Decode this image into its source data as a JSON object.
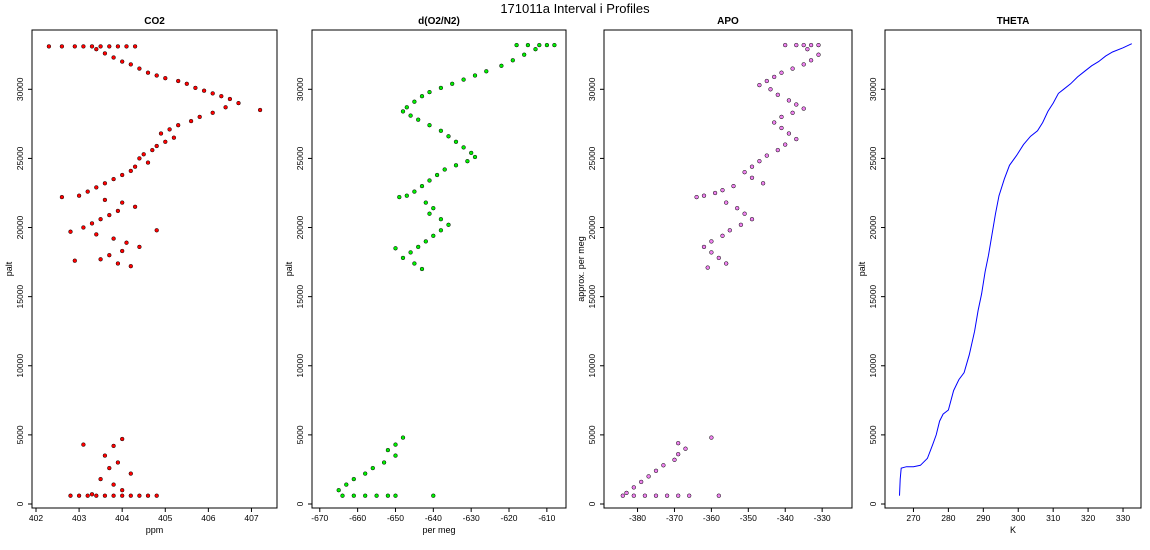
{
  "figure_title": "171011a   Interval i Profiles",
  "chart_data": [
    {
      "type": "scatter",
      "title": "CO2",
      "xlabel": "ppm",
      "ylabel": "palt",
      "xlim": [
        402.0,
        407.5
      ],
      "ylim": [
        0,
        34000
      ],
      "xticks": [
        402,
        403,
        404,
        405,
        406,
        407
      ],
      "yticks": [
        0,
        5000,
        10000,
        15000,
        20000,
        25000,
        30000
      ],
      "color": "#ff0000",
      "style": "points",
      "points": [
        [
          402.3,
          33100
        ],
        [
          402.6,
          33100
        ],
        [
          402.9,
          33100
        ],
        [
          403.1,
          33100
        ],
        [
          403.3,
          33100
        ],
        [
          403.5,
          33100
        ],
        [
          403.7,
          33100
        ],
        [
          403.9,
          33100
        ],
        [
          404.1,
          33100
        ],
        [
          404.3,
          33100
        ],
        [
          403.4,
          32900
        ],
        [
          403.6,
          32600
        ],
        [
          403.8,
          32300
        ],
        [
          404.0,
          32000
        ],
        [
          404.2,
          31800
        ],
        [
          404.4,
          31500
        ],
        [
          404.6,
          31200
        ],
        [
          404.8,
          31000
        ],
        [
          405.0,
          30800
        ],
        [
          405.3,
          30600
        ],
        [
          405.5,
          30400
        ],
        [
          405.7,
          30100
        ],
        [
          405.9,
          29900
        ],
        [
          406.1,
          29700
        ],
        [
          406.3,
          29500
        ],
        [
          406.5,
          29300
        ],
        [
          406.7,
          29000
        ],
        [
          407.2,
          28500
        ],
        [
          406.4,
          28700
        ],
        [
          406.1,
          28300
        ],
        [
          405.8,
          28000
        ],
        [
          405.6,
          27700
        ],
        [
          405.3,
          27400
        ],
        [
          405.1,
          27100
        ],
        [
          404.9,
          26800
        ],
        [
          405.2,
          26500
        ],
        [
          405.0,
          26200
        ],
        [
          404.8,
          25900
        ],
        [
          404.7,
          25600
        ],
        [
          404.5,
          25300
        ],
        [
          404.4,
          25000
        ],
        [
          404.6,
          24700
        ],
        [
          404.3,
          24400
        ],
        [
          404.2,
          24100
        ],
        [
          404.0,
          23800
        ],
        [
          403.8,
          23500
        ],
        [
          403.6,
          23200
        ],
        [
          403.4,
          22900
        ],
        [
          403.2,
          22600
        ],
        [
          403.0,
          22300
        ],
        [
          402.6,
          22200
        ],
        [
          403.6,
          22000
        ],
        [
          404.0,
          21800
        ],
        [
          404.3,
          21500
        ],
        [
          403.9,
          21200
        ],
        [
          403.7,
          20900
        ],
        [
          403.5,
          20600
        ],
        [
          403.3,
          20300
        ],
        [
          403.1,
          20000
        ],
        [
          402.8,
          19700
        ],
        [
          403.4,
          19500
        ],
        [
          403.8,
          19200
        ],
        [
          404.1,
          18900
        ],
        [
          404.4,
          18600
        ],
        [
          404.0,
          18300
        ],
        [
          403.7,
          18000
        ],
        [
          403.5,
          17700
        ],
        [
          403.9,
          17400
        ],
        [
          404.2,
          17200
        ],
        [
          404.8,
          19800
        ],
        [
          402.9,
          17600
        ],
        [
          403.1,
          4300
        ],
        [
          404.0,
          4700
        ],
        [
          403.8,
          4200
        ],
        [
          403.6,
          3500
        ],
        [
          403.9,
          3000
        ],
        [
          403.7,
          2600
        ],
        [
          404.2,
          2200
        ],
        [
          403.5,
          1800
        ],
        [
          403.8,
          1400
        ],
        [
          404.0,
          1000
        ],
        [
          403.3,
          700
        ],
        [
          402.8,
          600
        ],
        [
          403.0,
          600
        ],
        [
          403.2,
          600
        ],
        [
          403.4,
          600
        ],
        [
          403.6,
          600
        ],
        [
          403.8,
          600
        ],
        [
          404.0,
          600
        ],
        [
          404.2,
          600
        ],
        [
          404.4,
          600
        ],
        [
          404.6,
          600
        ],
        [
          404.8,
          600
        ]
      ]
    },
    {
      "type": "scatter",
      "title": "d(O2/N2)",
      "xlabel": "per meg",
      "ylabel": "palt",
      "xlim": [
        -671,
        -606
      ],
      "ylim": [
        0,
        34000
      ],
      "xticks": [
        -670,
        -660,
        -650,
        -640,
        -630,
        -620,
        -610
      ],
      "yticks": [
        0,
        5000,
        10000,
        15000,
        20000,
        25000,
        30000
      ],
      "color": "#00ee00",
      "style": "points",
      "points": [
        [
          -618,
          33200
        ],
        [
          -615,
          33200
        ],
        [
          -612,
          33200
        ],
        [
          -610,
          33200
        ],
        [
          -608,
          33200
        ],
        [
          -613,
          32900
        ],
        [
          -616,
          32500
        ],
        [
          -619,
          32100
        ],
        [
          -622,
          31700
        ],
        [
          -626,
          31300
        ],
        [
          -629,
          31000
        ],
        [
          -632,
          30700
        ],
        [
          -635,
          30400
        ],
        [
          -638,
          30100
        ],
        [
          -641,
          29800
        ],
        [
          -643,
          29500
        ],
        [
          -645,
          29100
        ],
        [
          -647,
          28700
        ],
        [
          -648,
          28400
        ],
        [
          -646,
          28100
        ],
        [
          -644,
          27800
        ],
        [
          -641,
          27400
        ],
        [
          -638,
          27000
        ],
        [
          -636,
          26600
        ],
        [
          -634,
          26200
        ],
        [
          -632,
          25800
        ],
        [
          -630,
          25400
        ],
        [
          -629,
          25100
        ],
        [
          -631,
          24800
        ],
        [
          -634,
          24500
        ],
        [
          -637,
          24200
        ],
        [
          -639,
          23800
        ],
        [
          -641,
          23400
        ],
        [
          -643,
          23000
        ],
        [
          -645,
          22600
        ],
        [
          -647,
          22300
        ],
        [
          -649,
          22200
        ],
        [
          -642,
          21800
        ],
        [
          -640,
          21400
        ],
        [
          -641,
          21000
        ],
        [
          -638,
          20600
        ],
        [
          -636,
          20200
        ],
        [
          -638,
          19800
        ],
        [
          -640,
          19400
        ],
        [
          -642,
          19000
        ],
        [
          -644,
          18600
        ],
        [
          -646,
          18200
        ],
        [
          -648,
          17800
        ],
        [
          -645,
          17400
        ],
        [
          -643,
          17000
        ],
        [
          -650,
          18500
        ],
        [
          -648,
          4800
        ],
        [
          -650,
          4300
        ],
        [
          -652,
          3900
        ],
        [
          -650,
          3500
        ],
        [
          -653,
          3000
        ],
        [
          -656,
          2600
        ],
        [
          -658,
          2200
        ],
        [
          -661,
          1800
        ],
        [
          -663,
          1400
        ],
        [
          -665,
          1000
        ],
        [
          -664,
          600
        ],
        [
          -661,
          600
        ],
        [
          -658,
          600
        ],
        [
          -655,
          600
        ],
        [
          -652,
          600
        ],
        [
          -650,
          600
        ],
        [
          -640,
          600
        ]
      ]
    },
    {
      "type": "scatter",
      "title": "APO",
      "xlabel": "",
      "ylabel": "approx. per meg",
      "xlim": [
        -388,
        -323
      ],
      "ylim": [
        0,
        34000
      ],
      "xticks": [
        -380,
        -370,
        -360,
        -350,
        -340,
        -330
      ],
      "yticks": [
        0,
        5000,
        10000,
        15000,
        20000,
        25000,
        30000
      ],
      "color": "#ee82ee",
      "style": "points",
      "points": [
        [
          -340,
          33200
        ],
        [
          -337,
          33200
        ],
        [
          -335,
          33200
        ],
        [
          -333,
          33200
        ],
        [
          -331,
          33200
        ],
        [
          -334,
          32900
        ],
        [
          -331,
          32500
        ],
        [
          -333,
          32100
        ],
        [
          -335,
          31800
        ],
        [
          -338,
          31500
        ],
        [
          -341,
          31200
        ],
        [
          -343,
          30900
        ],
        [
          -345,
          30600
        ],
        [
          -347,
          30300
        ],
        [
          -344,
          30000
        ],
        [
          -342,
          29600
        ],
        [
          -339,
          29200
        ],
        [
          -337,
          28900
        ],
        [
          -335,
          28600
        ],
        [
          -338,
          28300
        ],
        [
          -341,
          28000
        ],
        [
          -343,
          27600
        ],
        [
          -341,
          27200
        ],
        [
          -339,
          26800
        ],
        [
          -337,
          26400
        ],
        [
          -340,
          26000
        ],
        [
          -342,
          25600
        ],
        [
          -345,
          25200
        ],
        [
          -347,
          24800
        ],
        [
          -349,
          24400
        ],
        [
          -351,
          24000
        ],
        [
          -349,
          23600
        ],
        [
          -346,
          23200
        ],
        [
          -354,
          23000
        ],
        [
          -357,
          22700
        ],
        [
          -359,
          22500
        ],
        [
          -362,
          22300
        ],
        [
          -364,
          22200
        ],
        [
          -356,
          21800
        ],
        [
          -353,
          21400
        ],
        [
          -351,
          21000
        ],
        [
          -349,
          20600
        ],
        [
          -352,
          20200
        ],
        [
          -355,
          19800
        ],
        [
          -357,
          19400
        ],
        [
          -360,
          19000
        ],
        [
          -362,
          18600
        ],
        [
          -360,
          18200
        ],
        [
          -358,
          17800
        ],
        [
          -356,
          17400
        ],
        [
          -361,
          17100
        ],
        [
          -369,
          4400
        ],
        [
          -367,
          4000
        ],
        [
          -369,
          3600
        ],
        [
          -370,
          3200
        ],
        [
          -373,
          2800
        ],
        [
          -375,
          2400
        ],
        [
          -377,
          2000
        ],
        [
          -379,
          1600
        ],
        [
          -381,
          1200
        ],
        [
          -383,
          800
        ],
        [
          -384,
          600
        ],
        [
          -381,
          600
        ],
        [
          -378,
          600
        ],
        [
          -375,
          600
        ],
        [
          -372,
          600
        ],
        [
          -369,
          600
        ],
        [
          -366,
          600
        ],
        [
          -358,
          600
        ],
        [
          -360,
          4800
        ]
      ]
    },
    {
      "type": "line",
      "title": "THETA",
      "xlabel": "K",
      "ylabel": "palt",
      "xlim": [
        263,
        334
      ],
      "ylim": [
        0,
        34000
      ],
      "xticks": [
        270,
        280,
        290,
        300,
        310,
        320,
        330
      ],
      "yticks": [
        0,
        5000,
        10000,
        15000,
        20000,
        25000,
        30000
      ],
      "color": "#0000ff",
      "style": "line",
      "points": [
        [
          266.0,
          600
        ],
        [
          266.2,
          1800
        ],
        [
          266.5,
          2600
        ],
        [
          268,
          2700
        ],
        [
          270,
          2700
        ],
        [
          272,
          2800
        ],
        [
          274,
          3300
        ],
        [
          275.5,
          4300
        ],
        [
          276.5,
          5000
        ],
        [
          277.5,
          6000
        ],
        [
          278.5,
          6500
        ],
        [
          280,
          6800
        ],
        [
          281.5,
          8200
        ],
        [
          283,
          9000
        ],
        [
          284.5,
          9500
        ],
        [
          286,
          10800
        ],
        [
          287.5,
          12500
        ],
        [
          288.5,
          14000
        ],
        [
          289.5,
          15200
        ],
        [
          290.5,
          16800
        ],
        [
          291.5,
          18000
        ],
        [
          292.5,
          19500
        ],
        [
          293.5,
          21000
        ],
        [
          294.5,
          22300
        ],
        [
          296,
          23500
        ],
        [
          297.5,
          24500
        ],
        [
          299.5,
          25200
        ],
        [
          301.5,
          26000
        ],
        [
          303.5,
          26600
        ],
        [
          305.5,
          27000
        ],
        [
          307,
          27600
        ],
        [
          308.5,
          28400
        ],
        [
          310,
          29000
        ],
        [
          311.5,
          29700
        ],
        [
          313,
          30000
        ],
        [
          315,
          30400
        ],
        [
          317,
          30900
        ],
        [
          319,
          31300
        ],
        [
          321,
          31700
        ],
        [
          323,
          32000
        ],
        [
          325,
          32400
        ],
        [
          327,
          32700
        ],
        [
          330,
          33000
        ],
        [
          332.5,
          33300
        ]
      ]
    }
  ]
}
